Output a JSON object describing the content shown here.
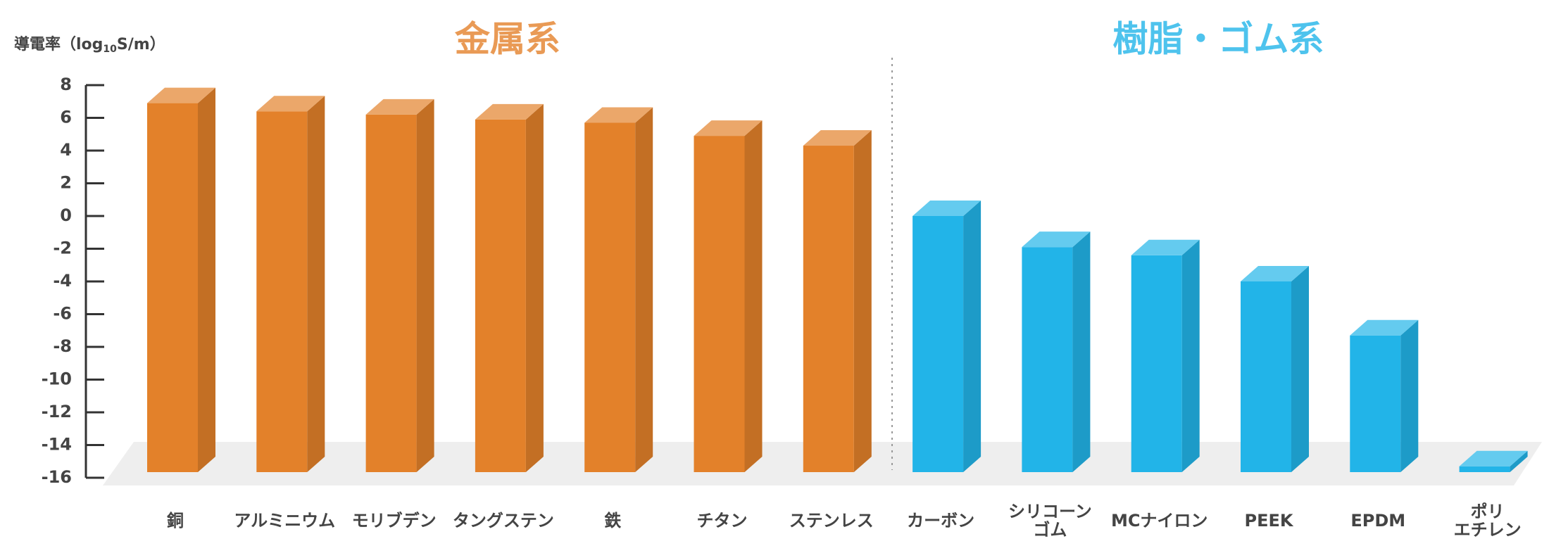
{
  "chart_data": {
    "type": "bar3d",
    "y_label": [
      "導電率（log",
      "10",
      "S/m）"
    ],
    "categories": [
      "銅",
      "アルミニウム",
      "モリブデン",
      "タングステン",
      "鉄",
      "チタン",
      "ステンレス",
      "カーボン",
      "シリコーン\nゴム",
      "MCナイロン",
      "PEEK",
      "EPDM",
      "ポリ\nエチレン"
    ],
    "series": [
      {
        "name": "金属系",
        "color": "#e3812a",
        "values": [
          6.9,
          6.4,
          6.2,
          5.9,
          5.7,
          4.9,
          4.3,
          null,
          null,
          null,
          null,
          null,
          null
        ]
      },
      {
        "name": "樹脂・ゴム系",
        "color": "#22b4e8",
        "values": [
          null,
          null,
          null,
          null,
          null,
          null,
          null,
          0.0,
          -1.9,
          -2.4,
          -4.0,
          -7.3,
          -15.3
        ]
      }
    ],
    "ylim": [
      -16,
      8
    ],
    "yticks": [
      -16,
      -14,
      -12,
      -10,
      -8,
      -6,
      -4,
      -2,
      0,
      2,
      4,
      6,
      8
    ]
  }
}
